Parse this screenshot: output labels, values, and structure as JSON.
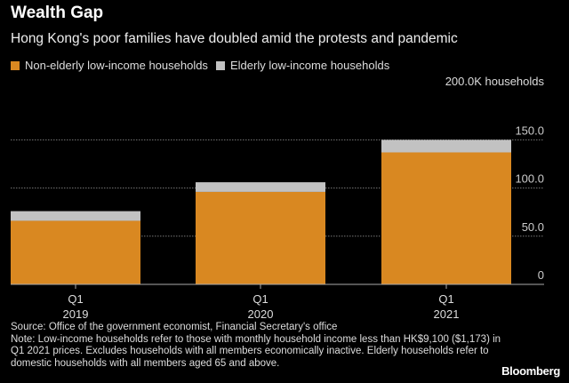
{
  "title": "Wealth Gap",
  "subtitle": "Hong Kong's poor families have doubled amid the protests and pandemic",
  "notes": {
    "source": "Source: Office of the government economist, Financial Secretary's office",
    "note": "Note: Low-income households refer to those with monthly household income less than HK$9,100 ($1,173) in Q1 2021 prices. Excludes households with all members economically inactive. Elderly households refer to domestic households with all members aged 65 and above."
  },
  "brand": "Bloomberg",
  "chart_data": {
    "type": "bar",
    "stacked": true,
    "title": "Wealth Gap",
    "categories": [
      [
        "Q1",
        "2019"
      ],
      [
        "Q1",
        "2020"
      ],
      [
        "Q1",
        "2021"
      ]
    ],
    "series": [
      {
        "name": "Non-elderly low-income households",
        "color": "#d98821",
        "values": [
          66,
          96,
          137
        ]
      },
      {
        "name": "Elderly low-income households",
        "color": "#c2c2c2",
        "values": [
          10,
          10,
          13
        ]
      }
    ],
    "unit_label": "200.0K households",
    "yticks": [
      {
        "v": 0,
        "label": "0"
      },
      {
        "v": 50,
        "label": "50.0"
      },
      {
        "v": 100,
        "label": "100.0"
      },
      {
        "v": 150,
        "label": "150.0"
      }
    ],
    "ylim": [
      0,
      200
    ],
    "grid": true,
    "legend_position": "top-left"
  }
}
